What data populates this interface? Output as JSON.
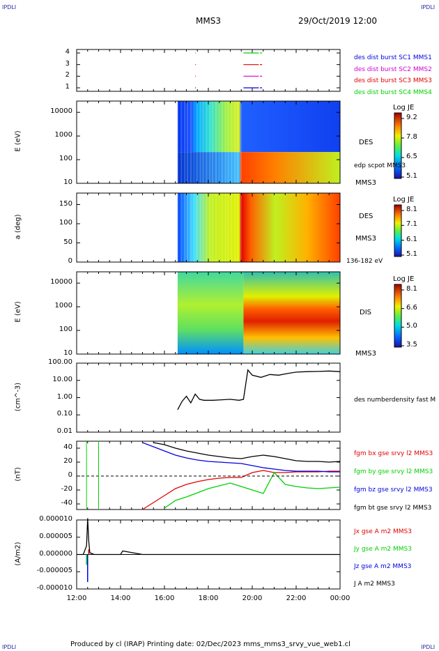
{
  "corners": {
    "top_left": "IPDLI",
    "top_right": "IPDLI",
    "bottom_left": "IPDLI",
    "bottom_right": "IPDLI"
  },
  "header": {
    "spacecraft": "MMS3",
    "datetime": "29/Oct/2019 12:00"
  },
  "footer": "Produced by cl (IRAP)   Printing date: 02/Dec/2023   mms_mms3_srvy_vue_web1.cl",
  "colors": {
    "red": "#e00000",
    "green": "#00d000",
    "blue": "#0000e0",
    "magenta": "#d000d0",
    "black": "#000000"
  },
  "chart_data": [
    {
      "type": "scatter",
      "panel": "availability",
      "x_ticks": [
        "12:00",
        "14:00",
        "16:00",
        "18:00",
        "20:00",
        "22:00",
        "00:00"
      ],
      "yticks": [
        "1",
        "2",
        "3",
        "4"
      ],
      "legend": [
        {
          "name": "des dist burst SC1 MMS1",
          "color": "#0000e0",
          "level": 1
        },
        {
          "name": "des dist burst SC2 MMS2",
          "color": "#d000d0",
          "level": 2
        },
        {
          "name": "des dist burst SC3 MMS3",
          "color": "#e00000",
          "level": 3
        },
        {
          "name": "des dist burst SC4 MMS4",
          "color": "#00d000",
          "level": 4
        }
      ],
      "intervals_hours": [
        [
          17.4,
          17.42
        ],
        [
          19.6,
          20.3
        ],
        [
          20.35,
          20.45
        ]
      ]
    },
    {
      "type": "heatmap",
      "panel": "des-energy",
      "ylabel": "E (eV)",
      "yticks": [
        "10",
        "100",
        "1000",
        "10000"
      ],
      "yscale": "log",
      "ylim": [
        10,
        30000
      ],
      "data_start_hours": 16.6,
      "colorbar": {
        "title": "Log JE",
        "ticks": [
          "9.2",
          "7.8",
          "6.5",
          "5.1"
        ],
        "range": [
          5.1,
          9.2
        ]
      },
      "labels": [
        "DES",
        "edp scpot MMS3",
        "MMS3"
      ]
    },
    {
      "type": "heatmap",
      "panel": "des-pitch",
      "ylabel": "a (deg)",
      "yticks": [
        "0",
        "50",
        "100",
        "150"
      ],
      "ylim": [
        0,
        180
      ],
      "data_start_hours": 16.6,
      "colorbar": {
        "title": "Log JE",
        "ticks": [
          "8.1",
          "7.1",
          "6.1",
          "5.1"
        ],
        "range": [
          5.1,
          8.1
        ]
      },
      "labels": [
        "DES",
        "MMS3",
        "136-182 eV"
      ]
    },
    {
      "type": "heatmap",
      "panel": "dis-energy",
      "ylabel": "E (eV)",
      "yticks": [
        "10",
        "100",
        "1000",
        "10000"
      ],
      "yscale": "log",
      "ylim": [
        10,
        30000
      ],
      "data_start_hours": 16.6,
      "colorbar": {
        "title": "Log JE",
        "ticks": [
          "8.1",
          "6.6",
          "5.0",
          "3.5"
        ],
        "range": [
          3.5,
          8.1
        ]
      },
      "labels": [
        "DIS",
        "MMS3"
      ]
    },
    {
      "type": "line",
      "panel": "density",
      "ylabel": "(cm^-3)",
      "yticks": [
        "0.01",
        "0.10",
        "1.00",
        "10.00",
        "100.00"
      ],
      "yscale": "log",
      "ylim": [
        0.01,
        100
      ],
      "series": [
        {
          "name": "des numberdensity fast M",
          "color": "#000000",
          "x": [
            16.6,
            16.8,
            17.0,
            17.2,
            17.4,
            17.6,
            17.8,
            18.2,
            18.6,
            19.0,
            19.4,
            19.6,
            19.8,
            20.0,
            20.4,
            20.8,
            21.2,
            21.6,
            22.0,
            22.5,
            23.0,
            23.5,
            24.0
          ],
          "y": [
            0.2,
            0.6,
            1.2,
            0.5,
            1.6,
            0.8,
            0.7,
            0.7,
            0.75,
            0.8,
            0.7,
            0.8,
            40,
            20,
            15,
            22,
            20,
            25,
            30,
            32,
            33,
            35,
            32
          ]
        }
      ]
    },
    {
      "type": "line",
      "panel": "magnetic-field",
      "ylabel": "(nT)",
      "yticks": [
        "-40",
        "-20",
        "0",
        "20",
        "40"
      ],
      "ylim": [
        -48,
        50
      ],
      "series": [
        {
          "name": "fgm bx gse srvy l2 MMS3",
          "color": "#e00000",
          "x": [
            15.0,
            15.5,
            16.0,
            16.5,
            17.0,
            17.5,
            18.0,
            18.5,
            19.0,
            19.5,
            20.0,
            20.5,
            21.0,
            21.5,
            22.0,
            22.5,
            23.0,
            23.5,
            24.0
          ],
          "y": [
            -48,
            -38,
            -28,
            -18,
            -12,
            -8,
            -5,
            -3,
            -2,
            -2,
            5,
            8,
            5,
            5,
            6,
            6,
            6,
            7,
            7
          ]
        },
        {
          "name": "fgm by gse srvy l2 MMS3",
          "color": "#00d000",
          "x": [
            16.0,
            16.5,
            17.0,
            17.5,
            18.0,
            18.5,
            19.0,
            19.5,
            20.0,
            20.5,
            21.0,
            21.5,
            22.0,
            22.5,
            23.0,
            23.5,
            24.0
          ],
          "y": [
            -46,
            -35,
            -30,
            -24,
            -18,
            -14,
            -10,
            -15,
            -20,
            -25,
            5,
            -12,
            -15,
            -17,
            -18,
            -17,
            -16
          ]
        },
        {
          "name": "fgm bz gse srvy l2 MMS3",
          "color": "#0000e0",
          "x": [
            15.0,
            15.5,
            16.0,
            16.5,
            17.0,
            17.5,
            18.0,
            18.5,
            19.0,
            19.5,
            20.0,
            20.5,
            21.0,
            21.5,
            22.0,
            22.5,
            23.0,
            23.5,
            24.0
          ],
          "y": [
            48,
            42,
            36,
            30,
            26,
            23,
            21,
            20,
            19,
            18,
            15,
            12,
            10,
            8,
            7,
            7,
            7,
            6,
            6
          ]
        },
        {
          "name": "fgm bt gse srvy l2 MMS3",
          "color": "#000000",
          "x": [
            15.5,
            16.0,
            16.5,
            17.0,
            17.5,
            18.0,
            18.5,
            19.0,
            19.5,
            20.0,
            20.5,
            21.0,
            21.5,
            22.0,
            22.5,
            23.0,
            23.5,
            24.0
          ],
          "y": [
            48,
            45,
            40,
            36,
            33,
            30,
            28,
            26,
            25,
            28,
            30,
            28,
            25,
            22,
            21,
            21,
            20,
            21
          ]
        }
      ],
      "zero_line": true
    },
    {
      "type": "line",
      "panel": "current",
      "ylabel": "(A/m2)",
      "yticks": [
        "-0.000010",
        "-0.000005",
        "0.000000",
        "0.000005",
        "0.000010"
      ],
      "ylim": [
        -1e-05,
        1e-05
      ],
      "xticks": [
        "12:00",
        "14:00",
        "16:00",
        "18:00",
        "20:00",
        "22:00",
        "00:00"
      ],
      "series": [
        {
          "name": "Jx gse A m2 MMS3",
          "color": "#e00000"
        },
        {
          "name": "Jy gse A m2 MMS3",
          "color": "#00d000"
        },
        {
          "name": "Jz gse A m2 MMS3",
          "color": "#0000e0"
        },
        {
          "name": "J A m2 MMS3",
          "color": "#000000",
          "x": [
            12.0,
            12.3,
            12.45,
            12.5,
            12.55,
            12.6,
            12.8,
            13.5,
            14.0,
            14.1,
            15,
            18,
            20,
            22,
            24
          ],
          "y": [
            0,
            0,
            2.5e-06,
            1.05e-05,
            4e-06,
            5e-07,
            0,
            0,
            0,
            1e-06,
            0,
            0,
            0,
            0,
            0
          ]
        }
      ]
    }
  ]
}
